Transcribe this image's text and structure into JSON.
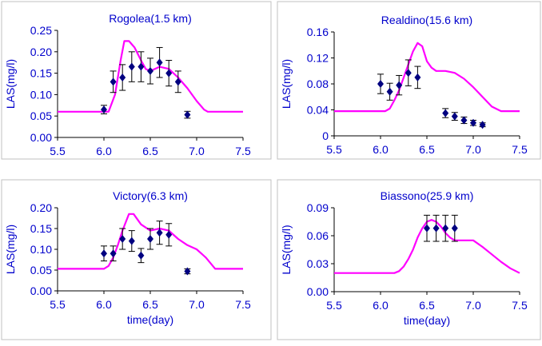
{
  "colors": {
    "text": "#0000cc",
    "model": "#ff00ff",
    "observed": "#000080",
    "plot_bg": "#ffffff",
    "frame": "#c0c0c0"
  },
  "chart_data": [
    {
      "type": "line",
      "title": "Rogolea(1.5 km)",
      "xlabel": "",
      "ylabel": "LAS(mg/l)",
      "xlim": [
        5.5,
        7.5
      ],
      "ylim": [
        0,
        0.25
      ],
      "xticks": [
        "5.5",
        "6.0",
        "6.5",
        "7.0",
        "7.5"
      ],
      "yticks": [
        "0.00",
        "0.05",
        "0.10",
        "0.15",
        "0.20",
        "0.25"
      ],
      "grid": false,
      "model": {
        "x": [
          5.5,
          6.05,
          6.12,
          6.18,
          6.22,
          6.27,
          6.33,
          6.4,
          6.45,
          6.5,
          6.6,
          6.7,
          6.8,
          6.9,
          7.0,
          7.08,
          7.12,
          7.5
        ],
        "y": [
          0.06,
          0.06,
          0.1,
          0.18,
          0.225,
          0.225,
          0.21,
          0.18,
          0.16,
          0.155,
          0.165,
          0.16,
          0.14,
          0.115,
          0.085,
          0.065,
          0.06,
          0.06
        ]
      },
      "observed": {
        "x": [
          6.0,
          6.1,
          6.2,
          6.3,
          6.4,
          6.5,
          6.6,
          6.7,
          6.8,
          6.9
        ],
        "y": [
          0.065,
          0.13,
          0.14,
          0.165,
          0.165,
          0.155,
          0.175,
          0.15,
          0.13,
          0.053
        ],
        "err": [
          0.01,
          0.025,
          0.03,
          0.035,
          0.035,
          0.03,
          0.035,
          0.03,
          0.025,
          0.008
        ]
      }
    },
    {
      "type": "line",
      "title": "Realdino(15.6 km)",
      "xlabel": "",
      "ylabel": "LAS(mg/l)",
      "xlim": [
        5.5,
        7.5
      ],
      "ylim": [
        0,
        0.16
      ],
      "xticks": [
        "5.5",
        "6.0",
        "6.5",
        "7.0",
        "7.5"
      ],
      "yticks": [
        "0",
        "0.04",
        "0.08",
        "0.12",
        "0.16"
      ],
      "grid": false,
      "model": {
        "x": [
          5.5,
          6.05,
          6.1,
          6.15,
          6.2,
          6.25,
          6.3,
          6.35,
          6.4,
          6.45,
          6.5,
          6.55,
          6.6,
          6.7,
          6.8,
          6.9,
          7.0,
          7.1,
          7.2,
          7.3,
          7.4,
          7.5
        ],
        "y": [
          0.038,
          0.038,
          0.042,
          0.055,
          0.07,
          0.09,
          0.11,
          0.13,
          0.143,
          0.138,
          0.115,
          0.105,
          0.1,
          0.1,
          0.097,
          0.088,
          0.075,
          0.06,
          0.045,
          0.038,
          0.038,
          0.038
        ]
      },
      "observed": {
        "x": [
          6.0,
          6.1,
          6.2,
          6.3,
          6.4,
          6.7,
          6.8,
          6.9,
          7.0,
          7.1
        ],
        "y": [
          0.08,
          0.068,
          0.078,
          0.097,
          0.09,
          0.035,
          0.03,
          0.024,
          0.02,
          0.017
        ],
        "err": [
          0.015,
          0.013,
          0.015,
          0.02,
          0.017,
          0.007,
          0.006,
          0.005,
          0.004,
          0.003
        ]
      }
    },
    {
      "type": "line",
      "title": "Victory(6.3 km)",
      "xlabel": "time(day)",
      "ylabel": "LAS(mg/l)",
      "xlim": [
        5.5,
        7.5
      ],
      "ylim": [
        0,
        0.2
      ],
      "xticks": [
        "5.5",
        "6.0",
        "6.5",
        "7.0",
        "7.5"
      ],
      "yticks": [
        "0.00",
        "0.05",
        "0.10",
        "0.15",
        "0.20"
      ],
      "grid": false,
      "model": {
        "x": [
          5.5,
          6.0,
          6.05,
          6.1,
          6.15,
          6.2,
          6.27,
          6.32,
          6.4,
          6.5,
          6.6,
          6.7,
          6.8,
          6.9,
          7.0,
          7.1,
          7.2,
          7.5
        ],
        "y": [
          0.053,
          0.053,
          0.06,
          0.08,
          0.11,
          0.145,
          0.185,
          0.185,
          0.16,
          0.145,
          0.15,
          0.145,
          0.125,
          0.11,
          0.1,
          0.08,
          0.053,
          0.053
        ]
      },
      "observed": {
        "x": [
          6.0,
          6.1,
          6.2,
          6.3,
          6.4,
          6.5,
          6.6,
          6.7,
          6.9
        ],
        "y": [
          0.09,
          0.09,
          0.125,
          0.12,
          0.085,
          0.125,
          0.14,
          0.135,
          0.047
        ],
        "err": [
          0.018,
          0.018,
          0.025,
          0.025,
          0.017,
          0.025,
          0.028,
          0.027,
          0.006
        ]
      }
    },
    {
      "type": "line",
      "title": "Biassono(25.9 km)",
      "xlabel": "time(day)",
      "ylabel": "LAS(mg/l)",
      "xlim": [
        5.5,
        7.5
      ],
      "ylim": [
        0,
        0.09
      ],
      "xticks": [
        "5.5",
        "6.0",
        "6.5",
        "7.0",
        "7.5"
      ],
      "yticks": [
        "0.00",
        "0.03",
        "0.06",
        "0.09"
      ],
      "grid": false,
      "model": {
        "x": [
          5.5,
          6.15,
          6.2,
          6.25,
          6.3,
          6.35,
          6.4,
          6.45,
          6.5,
          6.55,
          6.6,
          6.65,
          6.7,
          6.75,
          6.8,
          6.9,
          7.0,
          7.1,
          7.2,
          7.3,
          7.4,
          7.5
        ],
        "y": [
          0.02,
          0.02,
          0.022,
          0.027,
          0.035,
          0.045,
          0.058,
          0.068,
          0.075,
          0.077,
          0.075,
          0.07,
          0.063,
          0.058,
          0.055,
          0.055,
          0.055,
          0.048,
          0.04,
          0.032,
          0.025,
          0.02
        ]
      },
      "observed": {
        "x": [
          6.5,
          6.6,
          6.7,
          6.8
        ],
        "y": [
          0.068,
          0.068,
          0.068,
          0.068
        ],
        "err": [
          0.014,
          0.014,
          0.014,
          0.014
        ]
      }
    }
  ]
}
